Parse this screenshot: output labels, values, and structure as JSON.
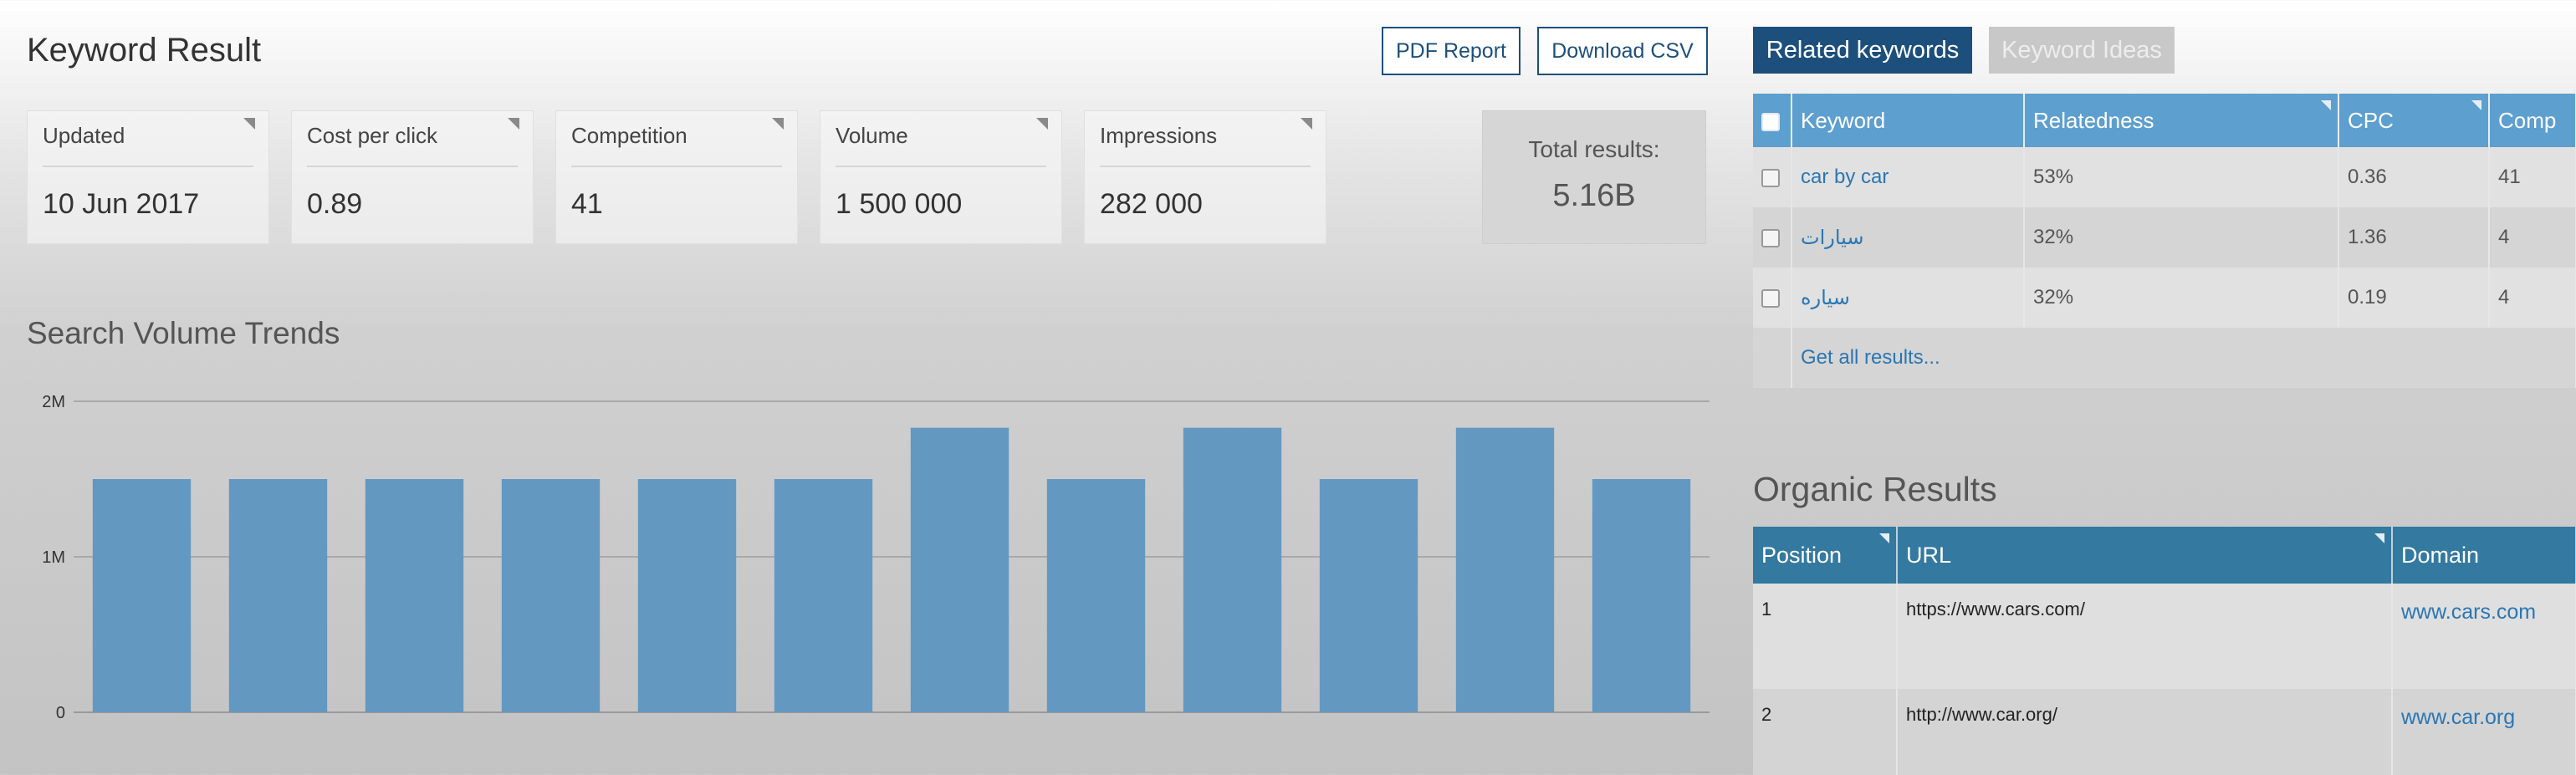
{
  "header": {
    "title": "Keyword Result",
    "pdf_label": "PDF Report",
    "csv_label": "Download CSV"
  },
  "stats": [
    {
      "label": "Updated",
      "value": "10 Jun 2017"
    },
    {
      "label": "Cost per click",
      "value": "0.89"
    },
    {
      "label": "Competition",
      "value": "41"
    },
    {
      "label": "Volume",
      "value": "1 500 000"
    },
    {
      "label": "Impressions",
      "value": "282 000"
    }
  ],
  "total": {
    "label": "Total results:",
    "value": "5.16B"
  },
  "trend": {
    "title": "Search Volume Trends"
  },
  "chart_data": {
    "type": "bar",
    "categories": [
      "",
      "",
      "",
      "",
      "",
      "",
      "",
      "",
      "",
      "",
      "",
      ""
    ],
    "values": [
      1500000,
      1500000,
      1500000,
      1500000,
      1500000,
      1500000,
      1830000,
      1500000,
      1830000,
      1500000,
      1830000,
      1500000
    ],
    "ylim": [
      0,
      2000000
    ],
    "yticks": [
      {
        "value": 0,
        "label": "0"
      },
      {
        "value": 1000000,
        "label": "1M"
      },
      {
        "value": 2000000,
        "label": "2M"
      }
    ],
    "grid": true,
    "bar_color": "#6398c1"
  },
  "tabs": {
    "related": "Related keywords",
    "ideas": "Keyword Ideas"
  },
  "keywords": {
    "columns": [
      "Keyword",
      "Relatedness",
      "CPC",
      "Comp"
    ],
    "rows": [
      {
        "keyword": "car by car",
        "relatedness": "53%",
        "cpc": "0.36",
        "comp": "41"
      },
      {
        "keyword": "سيارات",
        "relatedness": "32%",
        "cpc": "1.36",
        "comp": "4"
      },
      {
        "keyword": "سياره",
        "relatedness": "32%",
        "cpc": "0.19",
        "comp": "4"
      }
    ],
    "more_label": "Get all results..."
  },
  "organic": {
    "title": "Organic Results",
    "columns": [
      "Position",
      "URL",
      "Domain"
    ],
    "rows": [
      {
        "position": "1",
        "url": "https://www.cars.com/",
        "domain": "www.cars.com"
      },
      {
        "position": "2",
        "url": "http://www.car.org/",
        "domain": "www.car.org"
      }
    ]
  },
  "colors": {
    "accent": "#1d4f7c",
    "table_header": "#5d9fcf",
    "organic_header": "#34799f",
    "link": "#2a76b3",
    "bar": "#6398c1"
  }
}
